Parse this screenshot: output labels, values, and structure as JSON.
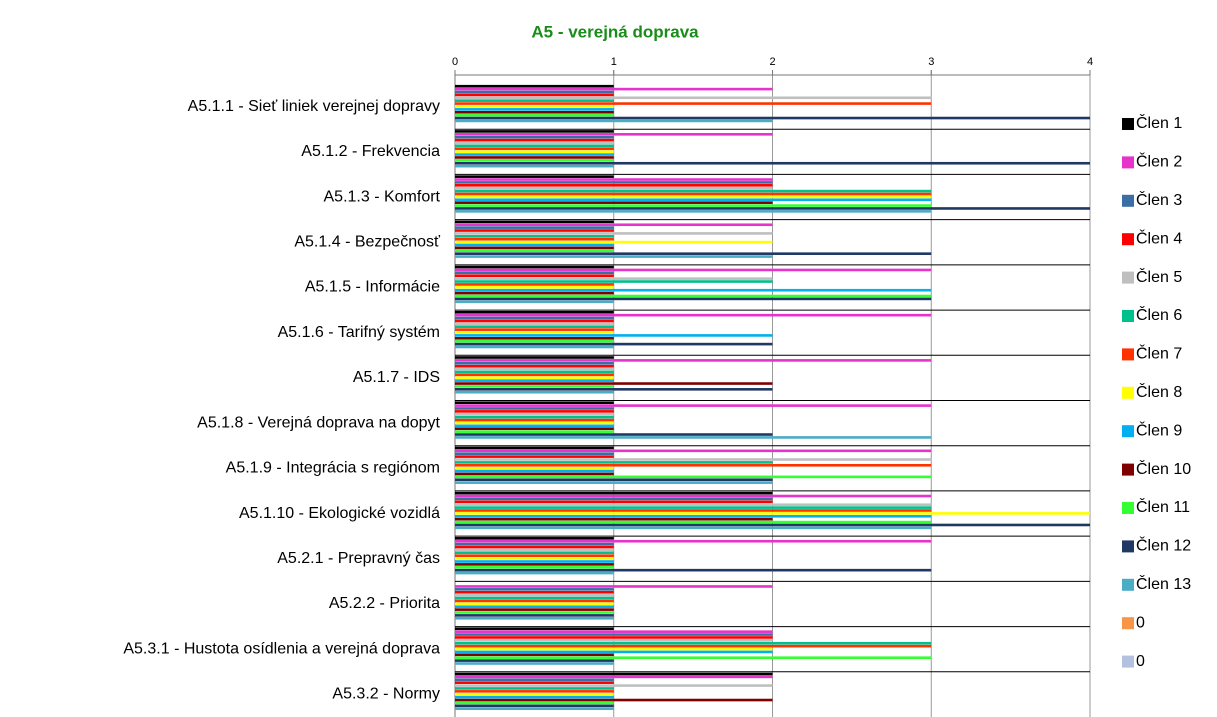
{
  "chart_data": {
    "type": "barh",
    "title": "A5 - verejná doprava",
    "categories": [
      "A5.1.1 - Sieť liniek verejnej dopravy",
      "A5.1.2 - Frekvencia",
      "A5.1.3 - Komfort",
      "A5.1.4 - Bezpečnosť",
      "A5.1.5 - Informácie",
      "A5.1.6 - Tarifný systém",
      "A5.1.7 - IDS",
      "A5.1.8 - Verejná doprava na dopyt",
      "A5.1.9 - Integrácia s regiónom",
      "A5.1.10 - Ekologické vozidlá",
      "A5.2.1 - Prepravný čas",
      "A5.2.2 - Priorita",
      "A5.3.1 - Hustota osídlenia a verejná doprava",
      "A5.3.2 - Normy"
    ],
    "series": [
      {
        "name": "Člen 1",
        "color": "#000000",
        "values": [
          1,
          1,
          1,
          1,
          1,
          1,
          1,
          1,
          1,
          2,
          1,
          0,
          1,
          2
        ]
      },
      {
        "name": "Člen 2",
        "color": "#e633cc",
        "values": [
          2,
          2,
          2,
          2,
          3,
          3,
          3,
          3,
          3,
          3,
          3,
          2,
          2,
          2
        ]
      },
      {
        "name": "Člen 3",
        "color": "#3a6ea5",
        "values": [
          1,
          1,
          2,
          1,
          1,
          1,
          1,
          1,
          1,
          2,
          1,
          1,
          2,
          1
        ]
      },
      {
        "name": "Člen 4",
        "color": "#ff0000",
        "values": [
          1,
          1,
          2,
          1,
          1,
          1,
          1,
          1,
          1,
          2,
          1,
          1,
          2,
          1
        ]
      },
      {
        "name": "Člen 5",
        "color": "#bfbfbf",
        "values": [
          3,
          1,
          2,
          2,
          2,
          1,
          1,
          1,
          3,
          3,
          1,
          1,
          2,
          2
        ]
      },
      {
        "name": "Člen 6",
        "color": "#00c08b",
        "values": [
          1,
          1,
          3,
          1,
          2,
          1,
          1,
          1,
          2,
          3,
          1,
          1,
          3,
          1
        ]
      },
      {
        "name": "Člen 7",
        "color": "#ff3300",
        "values": [
          3,
          1,
          3,
          1,
          1,
          1,
          1,
          1,
          3,
          3,
          1,
          1,
          3,
          1
        ]
      },
      {
        "name": "Člen 8",
        "color": "#ffff00",
        "values": [
          1,
          1,
          3,
          2,
          1,
          1,
          1,
          1,
          1,
          4,
          1,
          1,
          2,
          1
        ]
      },
      {
        "name": "Člen 9",
        "color": "#00b0f0",
        "values": [
          1,
          1,
          3,
          1,
          3,
          2,
          1,
          1,
          1,
          3,
          1,
          1,
          2,
          1
        ]
      },
      {
        "name": "Člen 10",
        "color": "#7f0000",
        "values": [
          1,
          1,
          2,
          1,
          1,
          1,
          2,
          1,
          1,
          2,
          1,
          1,
          1,
          2
        ]
      },
      {
        "name": "Člen 11",
        "color": "#33ff33",
        "values": [
          1,
          1,
          3,
          1,
          3,
          1,
          1,
          1,
          3,
          3,
          1,
          1,
          3,
          1
        ]
      },
      {
        "name": "Člen 12",
        "color": "#1f3864",
        "values": [
          4,
          4,
          4,
          3,
          3,
          2,
          2,
          2,
          2,
          4,
          3,
          1,
          1,
          1
        ]
      },
      {
        "name": "Člen 13",
        "color": "#4bacc6",
        "values": [
          2,
          1,
          3,
          2,
          1,
          1,
          1,
          3,
          2,
          3,
          1,
          1,
          1,
          1
        ]
      },
      {
        "name": "0",
        "color": "#f79646",
        "values": [
          0,
          0,
          0,
          0,
          0,
          0,
          0,
          0,
          0,
          0,
          0,
          0,
          0,
          0
        ]
      },
      {
        "name": "0",
        "color": "#b3c1e0",
        "values": [
          0,
          0,
          0,
          0,
          0,
          0,
          0,
          0,
          0,
          0,
          0,
          0,
          0,
          0
        ]
      }
    ],
    "xlim": [
      0,
      4
    ],
    "xticks": [
      0,
      1,
      2,
      3,
      4
    ],
    "grid": true
  }
}
